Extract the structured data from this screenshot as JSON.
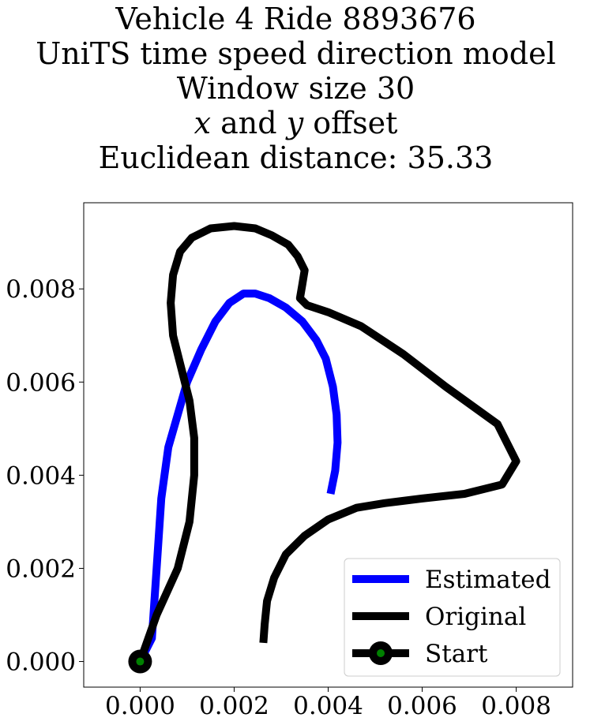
{
  "chart_data": {
    "type": "line",
    "title_lines": [
      "Vehicle 4 Ride 8893676",
      "UniTS time speed direction model",
      "Window size 30",
      "x and y offset",
      "Euclidean distance: 35.33"
    ],
    "title_italic_line": {
      "pre": "",
      "x": "x",
      "mid": " and ",
      "y": "y",
      "post": " offset"
    },
    "xlim": [
      -0.0012,
      0.0092
    ],
    "ylim": [
      -0.00055,
      0.00985
    ],
    "xticks": [
      0.0,
      0.002,
      0.004,
      0.006,
      0.008
    ],
    "xtick_labels": [
      "0.000",
      "0.002",
      "0.004",
      "0.006",
      "0.008"
    ],
    "yticks": [
      0.0,
      0.002,
      0.004,
      0.006,
      0.008
    ],
    "ytick_labels": [
      "0.000",
      "0.002",
      "0.004",
      "0.006",
      "0.008"
    ],
    "grid": false,
    "legend_position": "lower-right",
    "series": [
      {
        "name": "Estimated",
        "color": "#0000ff",
        "x": [
          0.0,
          0.00025,
          0.00035,
          0.00045,
          0.0006,
          0.0008,
          0.001,
          0.0013,
          0.0016,
          0.0019,
          0.0022,
          0.00245,
          0.00275,
          0.0031,
          0.00345,
          0.00375,
          0.00395,
          0.0041,
          0.00418,
          0.0042,
          0.00415,
          0.00405
        ],
        "y": [
          0.0,
          0.0005,
          0.002,
          0.0035,
          0.0046,
          0.0053,
          0.006,
          0.0067,
          0.0073,
          0.0077,
          0.0079,
          0.0079,
          0.0078,
          0.0076,
          0.0073,
          0.0069,
          0.0065,
          0.0059,
          0.0053,
          0.0047,
          0.0041,
          0.0036
        ]
      },
      {
        "name": "Original",
        "color": "#000000",
        "x": [
          0.0,
          0.00035,
          0.0008,
          0.00105,
          0.00115,
          0.00115,
          0.00105,
          0.00085,
          0.0007,
          0.00065,
          0.0007,
          0.00085,
          0.0011,
          0.0015,
          0.002,
          0.00245,
          0.0028,
          0.00315,
          0.00335,
          0.0035,
          0.00345,
          0.0034,
          0.00355,
          0.004,
          0.0047,
          0.0056,
          0.0065,
          0.0076,
          0.008,
          0.0077,
          0.0069,
          0.006,
          0.0052,
          0.0046,
          0.004,
          0.0035,
          0.0031,
          0.00285,
          0.0027,
          0.00265,
          0.00262
        ],
        "y": [
          0.0,
          0.001,
          0.002,
          0.003,
          0.004,
          0.0048,
          0.0056,
          0.0064,
          0.007,
          0.0077,
          0.0083,
          0.0088,
          0.0091,
          0.0093,
          0.00935,
          0.0093,
          0.00915,
          0.00895,
          0.0087,
          0.0084,
          0.0081,
          0.0078,
          0.00765,
          0.0075,
          0.0072,
          0.0066,
          0.0059,
          0.0051,
          0.0043,
          0.0038,
          0.0036,
          0.0035,
          0.0034,
          0.0033,
          0.00305,
          0.0027,
          0.0023,
          0.0018,
          0.0013,
          0.0008,
          0.0004
        ]
      }
    ],
    "start": {
      "name": "Start",
      "x": 0.0,
      "y": 0.0,
      "outer_color": "#000000",
      "inner_color": "#008000"
    }
  }
}
